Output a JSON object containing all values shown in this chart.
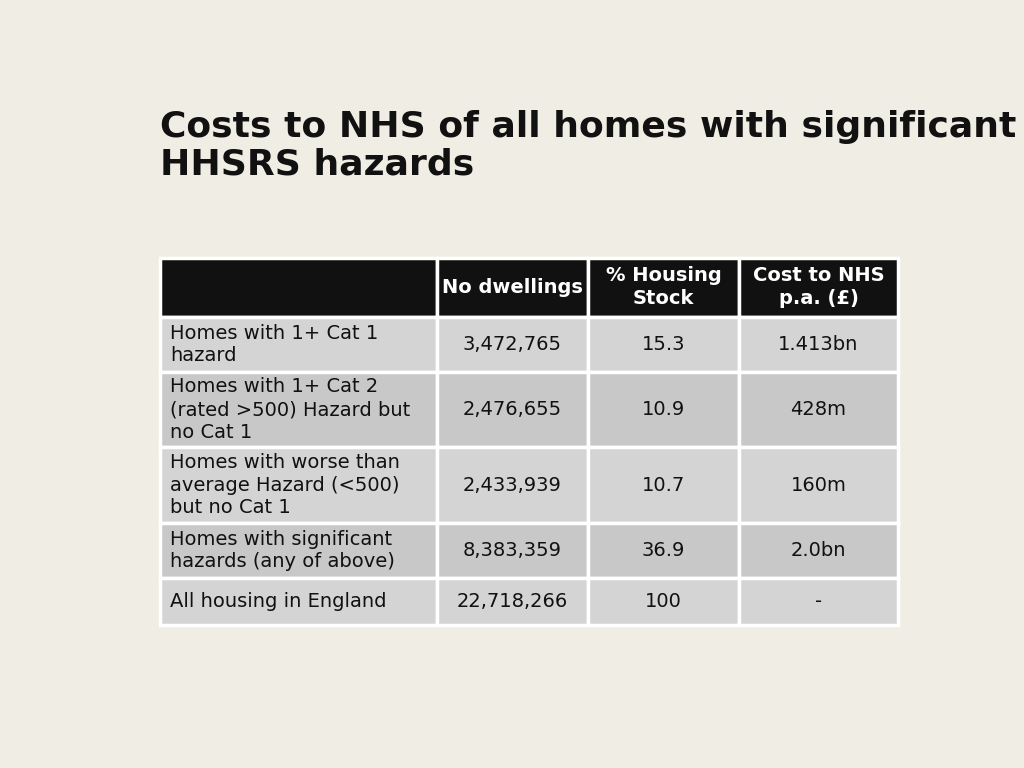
{
  "title": "Costs to NHS of all homes with significant\nHHSRS hazards",
  "title_fontsize": 26,
  "title_fontweight": "bold",
  "background_color": "#f0ede4",
  "header_bg_color": "#111111",
  "header_text_color": "#ffffff",
  "row_bg_colors": [
    "#d4d4d4",
    "#c8c8c8",
    "#d4d4d4",
    "#c8c8c8",
    "#d4d4d4"
  ],
  "col_headers": [
    "No dwellings",
    "% Housing\nStock",
    "Cost to NHS\np.a. (£)"
  ],
  "row_labels": [
    "Homes with 1+ Cat 1\nhazard",
    "Homes with 1+ Cat 2\n(rated >500) Hazard but\nno Cat 1",
    "Homes with worse than\naverage Hazard (<500)\nbut no Cat 1",
    "Homes with significant\nhazards (any of above)",
    "All housing in England"
  ],
  "col1_values": [
    "3,472,765",
    "2,476,655",
    "2,433,939",
    "8,383,359",
    "22,718,266"
  ],
  "col2_values": [
    "15.3",
    "10.9",
    "10.7",
    "36.9",
    "100"
  ],
  "col3_values": [
    "1.413bn",
    "428m",
    "160m",
    "2.0bn",
    "-"
  ],
  "cell_fontsize": 14,
  "header_fontsize": 14,
  "border_color": "#ffffff",
  "border_lw": 2.5
}
